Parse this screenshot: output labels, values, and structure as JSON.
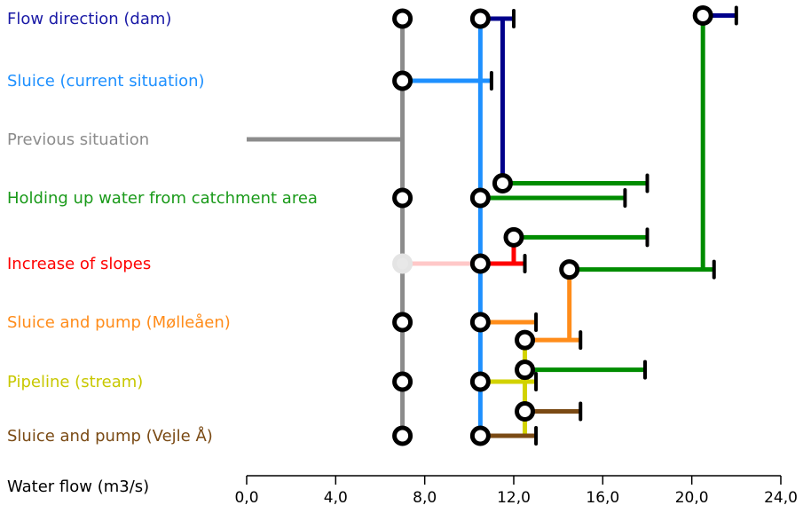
{
  "chart_data": {
    "type": "line",
    "xlabel": "Water flow (m3/s)",
    "xlim": [
      0,
      24
    ],
    "x_ticks": [
      "0,0",
      "4,0",
      "8,0",
      "12,0",
      "16,0",
      "20,0",
      "24,0"
    ],
    "x_tick_values": [
      0,
      4,
      8,
      12,
      16,
      20,
      24
    ],
    "grid": false,
    "legend": "none",
    "rows": [
      {
        "label": "Flow direction (dam)",
        "color": "#1a1aa6"
      },
      {
        "label": "Sluice (current situation)",
        "color": "#1e90ff"
      },
      {
        "label": "Previous situation",
        "color": "#8c8c8c"
      },
      {
        "label": "Holding up water from catchment area",
        "color": "#1a9a1a"
      },
      {
        "label": "Increase of slopes",
        "color": "#ff0000"
      },
      {
        "label": "Sluice and pump (Mølleåen)",
        "color": "#ff8c1a"
      },
      {
        "label": "Pipeline (stream)",
        "color": "#c8c800"
      },
      {
        "label": "Sluice and pump (Vejle Å)",
        "color": "#7a4a14"
      }
    ],
    "colors": {
      "gray": "#8c8c8c",
      "blue": "#1e90ff",
      "navy": "#00008b",
      "green": "#008c00",
      "red": "#ff0000",
      "orange": "#ff8c1a",
      "yellow": "#d2d200",
      "brown": "#7a4a14",
      "pink": "#ffc8c8"
    },
    "previous_situation_start": 0,
    "circles": [
      {
        "id": "g-r0",
        "x": 7.0,
        "y": 0.0,
        "color": "gray"
      },
      {
        "id": "b-r0",
        "x": 10.5,
        "y": 0.0,
        "color": "blue"
      },
      {
        "id": "gr-top",
        "x": 20.5,
        "y": -0.05,
        "color": "green"
      },
      {
        "id": "g-r1",
        "x": 7.0,
        "y": 1.0,
        "color": "gray"
      },
      {
        "id": "n-c",
        "x": 11.5,
        "y": 2.75,
        "color": "navy"
      },
      {
        "id": "g-r3",
        "x": 7.0,
        "y": 3.0,
        "color": "gray"
      },
      {
        "id": "b-r3",
        "x": 10.5,
        "y": 3.0,
        "color": "blue"
      },
      {
        "id": "r-c",
        "x": 12.0,
        "y": 3.6,
        "color": "red"
      },
      {
        "id": "pink-r4",
        "x": 7.0,
        "y": 4.0,
        "color": "pink",
        "faded": true
      },
      {
        "id": "b-r4",
        "x": 10.5,
        "y": 4.0,
        "color": "blue"
      },
      {
        "id": "o-top",
        "x": 14.5,
        "y": 4.1,
        "color": "orange"
      },
      {
        "id": "g-r5",
        "x": 7.0,
        "y": 5.0,
        "color": "gray"
      },
      {
        "id": "b-r5",
        "x": 10.5,
        "y": 5.0,
        "color": "blue"
      },
      {
        "id": "y-c1",
        "x": 12.5,
        "y": 5.3,
        "color": "yellow"
      },
      {
        "id": "y-c2",
        "x": 12.5,
        "y": 5.8,
        "color": "yellow"
      },
      {
        "id": "g-r6",
        "x": 7.0,
        "y": 6.0,
        "color": "gray"
      },
      {
        "id": "b-r6",
        "x": 10.5,
        "y": 6.0,
        "color": "blue"
      },
      {
        "id": "y-c3",
        "x": 12.5,
        "y": 6.55,
        "color": "yellow"
      },
      {
        "id": "g-r7",
        "x": 7.0,
        "y": 7.0,
        "color": "gray"
      },
      {
        "id": "b-r7",
        "x": 10.5,
        "y": 7.0,
        "color": "blue"
      }
    ],
    "segments": [
      {
        "color": "gray",
        "x1": 7.0,
        "y1": 0.0,
        "x2": 7.0,
        "y2": 7.0
      },
      {
        "color": "gray",
        "x1": 0.0,
        "y1": 2.0,
        "x2": 7.0,
        "y2": 2.0
      },
      {
        "color": "blue",
        "x1": 10.5,
        "y1": 0.0,
        "x2": 10.5,
        "y2": 7.0
      },
      {
        "color": "blue",
        "x1": 7.0,
        "y1": 1.0,
        "x2": 11.0,
        "y2": 1.0,
        "endcap": true
      },
      {
        "color": "navy",
        "x1": 10.5,
        "y1": 0.0,
        "x2": 12.0,
        "y2": 0.0,
        "endcap": true
      },
      {
        "color": "navy",
        "x1": 11.5,
        "y1": 0.0,
        "x2": 11.5,
        "y2": 2.75
      },
      {
        "color": "navy",
        "x1": 20.5,
        "y1": -0.05,
        "x2": 22.0,
        "y2": -0.05,
        "endcap": true
      },
      {
        "color": "green",
        "x1": 20.5,
        "y1": -0.05,
        "x2": 20.5,
        "y2": 4.1
      },
      {
        "color": "green",
        "x1": 14.5,
        "y1": 4.1,
        "x2": 21.0,
        "y2": 4.1,
        "endcap": true
      },
      {
        "color": "green",
        "x1": 11.5,
        "y1": 2.75,
        "x2": 18.0,
        "y2": 2.75,
        "endcap": true
      },
      {
        "color": "green",
        "x1": 10.5,
        "y1": 3.0,
        "x2": 17.0,
        "y2": 3.0,
        "endcap": true
      },
      {
        "color": "green",
        "x1": 12.0,
        "y1": 3.6,
        "x2": 18.0,
        "y2": 3.6,
        "endcap": true
      },
      {
        "color": "green",
        "x1": 12.5,
        "y1": 5.8,
        "x2": 17.9,
        "y2": 5.8,
        "endcap": true
      },
      {
        "color": "pink",
        "x1": 7.0,
        "y1": 4.0,
        "x2": 10.5,
        "y2": 4.0
      },
      {
        "color": "red",
        "x1": 10.5,
        "y1": 4.0,
        "x2": 12.5,
        "y2": 4.0,
        "endcap": true
      },
      {
        "color": "red",
        "x1": 12.0,
        "y1": 3.6,
        "x2": 12.0,
        "y2": 4.0
      },
      {
        "color": "orange",
        "x1": 10.5,
        "y1": 5.0,
        "x2": 13.0,
        "y2": 5.0,
        "endcap": true
      },
      {
        "color": "orange",
        "x1": 14.5,
        "y1": 4.1,
        "x2": 14.5,
        "y2": 5.3
      },
      {
        "color": "orange",
        "x1": 12.5,
        "y1": 5.3,
        "x2": 15.0,
        "y2": 5.3,
        "endcap": true
      },
      {
        "color": "yellow",
        "x1": 12.5,
        "y1": 5.3,
        "x2": 12.5,
        "y2": 7.0
      },
      {
        "color": "yellow",
        "x1": 10.5,
        "y1": 6.0,
        "x2": 13.0,
        "y2": 6.0,
        "endcap": true
      },
      {
        "color": "brown",
        "x1": 12.5,
        "y1": 6.55,
        "x2": 15.0,
        "y2": 6.55,
        "endcap": true
      },
      {
        "color": "brown",
        "x1": 10.5,
        "y1": 7.0,
        "x2": 13.0,
        "y2": 7.0,
        "endcap": true
      }
    ]
  }
}
